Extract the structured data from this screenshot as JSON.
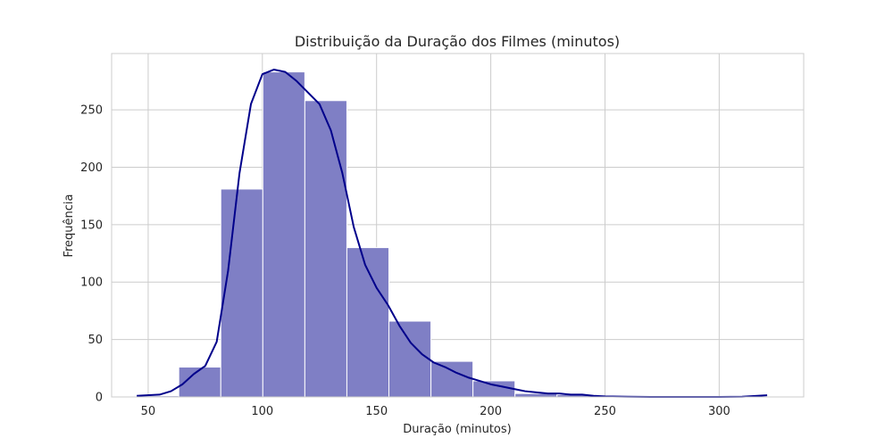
{
  "chart_data": {
    "type": "bar",
    "subtype": "histogram-with-kde",
    "title": "Distribuição da Duração dos Filmes (minutos)",
    "xlabel": "Duração (minutos)",
    "ylabel": "Frequência",
    "xlim": [
      34,
      337
    ],
    "ylim": [
      0,
      299
    ],
    "xticks": [
      50,
      100,
      150,
      200,
      250,
      300
    ],
    "yticks": [
      0,
      50,
      100,
      150,
      200,
      250
    ],
    "grid": true,
    "bar_color": "#7f7fc5",
    "bar_edge_color": "#ffffff",
    "kde_color": "#00008b",
    "grid_color": "#cccccc",
    "bins": [
      {
        "x0": 45.0,
        "x1": 63.4,
        "count": 1
      },
      {
        "x0": 63.4,
        "x1": 81.8,
        "count": 26
      },
      {
        "x0": 81.8,
        "x1": 100.2,
        "count": 181
      },
      {
        "x0": 100.2,
        "x1": 118.6,
        "count": 283
      },
      {
        "x0": 118.6,
        "x1": 137.0,
        "count": 258
      },
      {
        "x0": 137.0,
        "x1": 155.4,
        "count": 130
      },
      {
        "x0": 155.4,
        "x1": 173.8,
        "count": 66
      },
      {
        "x0": 173.8,
        "x1": 192.2,
        "count": 31
      },
      {
        "x0": 192.2,
        "x1": 210.6,
        "count": 14
      },
      {
        "x0": 210.6,
        "x1": 229.0,
        "count": 3
      },
      {
        "x0": 229.0,
        "x1": 247.4,
        "count": 2
      },
      {
        "x0": 247.4,
        "x1": 265.8,
        "count": 0
      },
      {
        "x0": 265.8,
        "x1": 284.2,
        "count": 0
      },
      {
        "x0": 284.2,
        "x1": 302.6,
        "count": 0
      },
      {
        "x0": 302.6,
        "x1": 321.0,
        "count": 0
      }
    ],
    "kde": {
      "x": [
        45,
        55,
        60,
        65,
        70,
        75,
        80,
        85,
        90,
        95,
        100,
        105,
        110,
        115,
        120,
        125,
        130,
        135,
        140,
        145,
        150,
        155,
        160,
        165,
        170,
        175,
        180,
        185,
        190,
        195,
        200,
        205,
        210,
        215,
        220,
        225,
        230,
        235,
        240,
        245,
        250,
        260,
        270,
        280,
        290,
        300,
        310,
        315,
        321
      ],
      "y": [
        1,
        2,
        5,
        11,
        20,
        27,
        48,
        110,
        195,
        255,
        281,
        285,
        283,
        275,
        265,
        255,
        232,
        195,
        148,
        115,
        95,
        80,
        62,
        47,
        37,
        30,
        26,
        21,
        17,
        14,
        11,
        9,
        7,
        5,
        4,
        3,
        3,
        2,
        2,
        1,
        0.5,
        0.2,
        0,
        0,
        0,
        0,
        0.2,
        0.8,
        1.5
      ]
    }
  }
}
